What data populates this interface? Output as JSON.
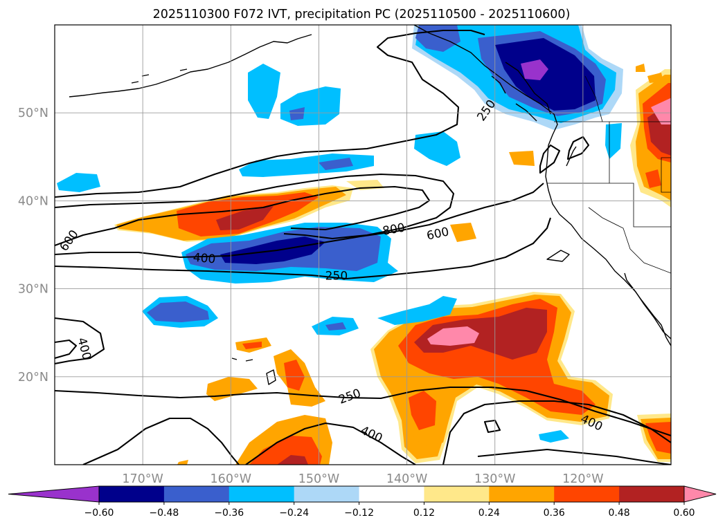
{
  "chart_data": {
    "type": "map",
    "title": "2025110300 F072 IVT, precipitation PC (2025110500 - 2025110600)",
    "projection": "PlateCarree",
    "extent_lon": [
      -180,
      -110
    ],
    "extent_lat": [
      10,
      60
    ],
    "lon_ticks": [
      {
        "lon": -170,
        "label": "170°W"
      },
      {
        "lon": -160,
        "label": "160°W"
      },
      {
        "lon": -150,
        "label": "150°W"
      },
      {
        "lon": -140,
        "label": "140°W"
      },
      {
        "lon": -130,
        "label": "130°W"
      },
      {
        "lon": -120,
        "label": "120°W"
      }
    ],
    "lat_ticks": [
      {
        "lat": 50,
        "label": "50°N"
      },
      {
        "lat": 40,
        "label": "40°N"
      },
      {
        "lat": 30,
        "label": "30°N"
      },
      {
        "lat": 20,
        "label": "20°N"
      }
    ],
    "colorbar": {
      "levels": [
        -0.72,
        -0.6,
        -0.48,
        -0.36,
        -0.24,
        -0.12,
        0.12,
        0.24,
        0.36,
        0.48,
        0.6,
        0.72
      ],
      "tick_labels": [
        "−0.60",
        "−0.48",
        "−0.36",
        "−0.24",
        "−0.12",
        "0.12",
        "0.24",
        "0.36",
        "0.48",
        "0.60"
      ],
      "colors": [
        "#9932cc",
        "#00008b",
        "#3a5fcd",
        "#00bfff",
        "#add8f7",
        "#ffffff",
        "#ffe88a",
        "#ffa500",
        "#ff4500",
        "#b22222",
        "#ff88aa"
      ],
      "extend": "both"
    },
    "ivt_contour_labels": [
      {
        "label": "600",
        "lon": -178.4,
        "lat": 35.5,
        "angle": -55
      },
      {
        "label": "400",
        "lon": -176.6,
        "lat": 23.2,
        "angle": 75
      },
      {
        "label": "400",
        "lon": -163,
        "lat": 33.5,
        "angle": 5
      },
      {
        "label": "250",
        "lon": -148,
        "lat": 31.5,
        "angle": 0
      },
      {
        "label": "800",
        "lon": -141.5,
        "lat": 36.8,
        "angle": -10
      },
      {
        "label": "600",
        "lon": -136.5,
        "lat": 36.3,
        "angle": -12
      },
      {
        "label": "250",
        "lon": -131,
        "lat": 50.3,
        "angle": -55
      },
      {
        "label": "250",
        "lon": -146.5,
        "lat": 17.8,
        "angle": -20
      },
      {
        "label": "400",
        "lon": -144,
        "lat": 13.5,
        "angle": 25
      },
      {
        "label": "400",
        "lon": -119,
        "lat": 14.8,
        "angle": 25
      }
    ],
    "precip_regions": [
      {
        "name": "ne-pacific-negative",
        "value": -0.6,
        "lon": -125.5,
        "lat": 55.3
      },
      {
        "name": "subtropical-jet-negative",
        "value": -0.48,
        "lon": -155,
        "lat": 33
      },
      {
        "name": "subtropical-jet-positive",
        "value": 0.48,
        "lon": -157,
        "lat": 37.5
      },
      {
        "name": "subtropical-east-positive",
        "value": 0.6,
        "lon": -131.5,
        "lat": 24.5
      },
      {
        "name": "pacific-northwest-positive",
        "value": 0.6,
        "lon": -111,
        "lat": 50
      }
    ]
  }
}
